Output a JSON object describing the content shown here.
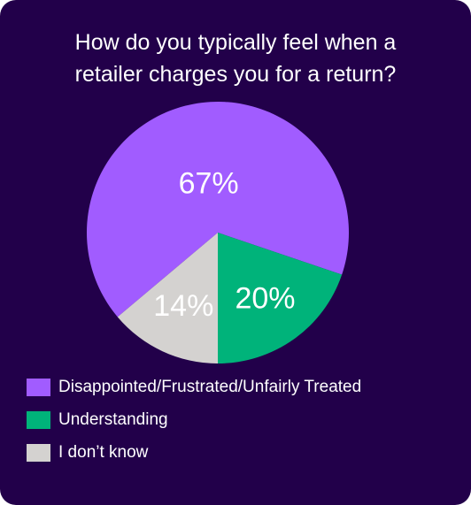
{
  "chart_data": {
    "type": "pie",
    "title_lines": [
      "How do you typically feel when a",
      "retailer charges you for a return?"
    ],
    "slices": [
      {
        "label": "Disappointed/Frustrated/Unfairly Treated",
        "value": 67,
        "display": "67%",
        "color": "#a15cff"
      },
      {
        "label": "Understanding",
        "value": 20,
        "display": "20%",
        "color": "#00b37a"
      },
      {
        "label": "I don’t know",
        "value": 14,
        "display": "14%",
        "color": "#d4d2d0"
      }
    ],
    "legend_position": "bottom-left"
  },
  "colors": {
    "background": "#22004a",
    "text": "#ffffff"
  }
}
